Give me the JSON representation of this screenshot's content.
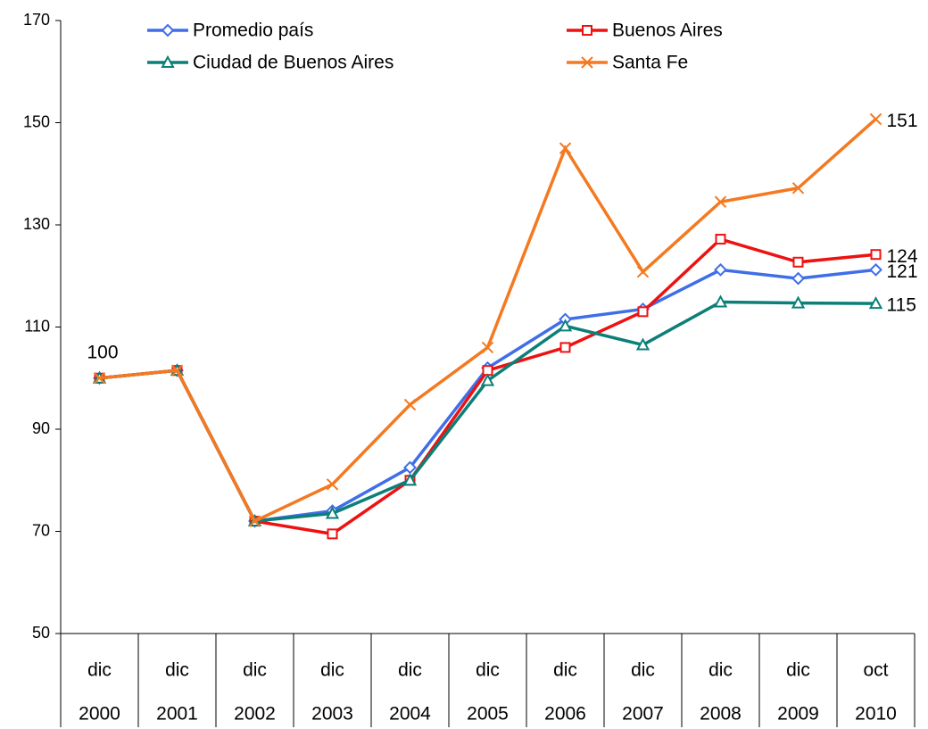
{
  "chart_data": {
    "type": "line",
    "categories": [
      [
        "dic",
        "2000"
      ],
      [
        "dic",
        "2001"
      ],
      [
        "dic",
        "2002"
      ],
      [
        "dic",
        "2003"
      ],
      [
        "dic",
        "2004"
      ],
      [
        "dic",
        "2005"
      ],
      [
        "dic",
        "2006"
      ],
      [
        "dic",
        "2007"
      ],
      [
        "dic",
        "2008"
      ],
      [
        "dic",
        "2009"
      ],
      [
        "oct",
        "2010"
      ]
    ],
    "ylim": [
      50,
      170
    ],
    "yticks": [
      50,
      70,
      90,
      110,
      130,
      150,
      170
    ],
    "series": [
      {
        "name": "Promedio país",
        "color": "#3f6ee8",
        "marker": "diamond",
        "values": [
          100,
          101.5,
          72,
          74,
          82.5,
          102,
          111.5,
          113.5,
          121.2,
          119.5,
          121.2
        ],
        "value_labels": [
          "100",
          null,
          null,
          null,
          null,
          null,
          null,
          null,
          null,
          null,
          "121"
        ]
      },
      {
        "name": "Buenos Aires",
        "color": "#ee1111",
        "marker": "square",
        "values": [
          100,
          101.5,
          72,
          69.5,
          80,
          101.5,
          106,
          113,
          127.2,
          122.7,
          124.2
        ],
        "value_labels": [
          null,
          null,
          null,
          null,
          null,
          null,
          null,
          null,
          null,
          null,
          "124"
        ]
      },
      {
        "name": "Ciudad de Buenos Aires",
        "color": "#0b7f78",
        "marker": "triangle",
        "values": [
          100,
          101.5,
          72,
          73.5,
          80,
          99.5,
          110.2,
          106.5,
          114.9,
          114.7,
          114.6
        ],
        "value_labels": [
          null,
          null,
          null,
          null,
          null,
          null,
          null,
          null,
          null,
          null,
          "115"
        ]
      },
      {
        "name": "Santa Fe",
        "color": "#f47920",
        "marker": "x",
        "values": [
          100,
          101.5,
          72,
          79.2,
          94.8,
          106,
          145,
          120.8,
          134.5,
          137.2,
          150.7
        ],
        "value_labels": [
          null,
          null,
          null,
          null,
          null,
          null,
          null,
          null,
          null,
          null,
          "151"
        ]
      }
    ]
  }
}
